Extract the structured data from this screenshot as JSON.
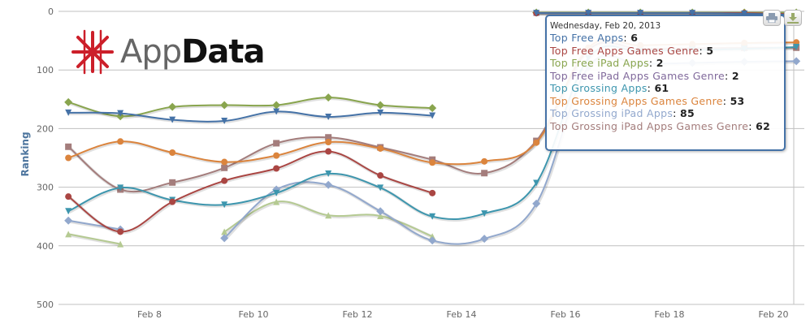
{
  "logo": {
    "part1": "App",
    "part2": "Data",
    "brand_color": "#cc1f2a"
  },
  "export": {
    "print_icon": "printer-icon",
    "download_icon": "download-icon"
  },
  "tooltip": {
    "date": "Wednesday, Feb 20, 2013",
    "rows": [
      {
        "label": "Top Free Apps",
        "value": "6",
        "color": "#4572A7"
      },
      {
        "label": "Top Free Apps Games Genre",
        "value": "5",
        "color": "#AA4643"
      },
      {
        "label": "Top Free iPad Apps",
        "value": "2",
        "color": "#89A54E"
      },
      {
        "label": "Top Free iPad Apps Games Genre",
        "value": "2",
        "color": "#80699B"
      },
      {
        "label": "Top Grossing Apps",
        "value": "61",
        "color": "#3D96AE"
      },
      {
        "label": "Top Grossing Apps Games Genre",
        "value": "53",
        "color": "#DB843D"
      },
      {
        "label": "Top Grossing iPad Apps",
        "value": "85",
        "color": "#92A8CD"
      },
      {
        "label": "Top Grossing iPad Apps Games Genre",
        "value": "62",
        "color": "#A47D7C"
      }
    ]
  },
  "chart_data": {
    "type": "line",
    "title": "",
    "xlabel": "",
    "ylabel": "Ranking",
    "ylim": [
      0,
      500
    ],
    "y_reversed": true,
    "y_ticks": [
      "0",
      "100",
      "200",
      "300",
      "400",
      "500"
    ],
    "x_ticks": [
      "Feb 8",
      "Feb 10",
      "Feb 12",
      "Feb 14",
      "Feb 16",
      "Feb 18",
      "Feb 20"
    ],
    "x_tick_days": [
      8,
      10,
      12,
      14,
      16,
      18,
      20
    ],
    "x_days": [
      6,
      7,
      8,
      9,
      10,
      11,
      12,
      13,
      14,
      15,
      16,
      17,
      18,
      19,
      20
    ],
    "grid": true,
    "series": [
      {
        "name": "Top Free Apps",
        "color": "#4572A7",
        "symbol": "triangle-down",
        "values": [
          173,
          174,
          185,
          187,
          171,
          180,
          173,
          178,
          null,
          3,
          3,
          3,
          3,
          4,
          6
        ]
      },
      {
        "name": "Top Free Apps Games Genre",
        "color": "#AA4643",
        "symbol": "circle",
        "values": [
          316,
          376,
          325,
          289,
          268,
          239,
          280,
          310,
          null,
          3,
          3,
          3,
          3,
          3,
          5
        ]
      },
      {
        "name": "Top Free iPad Apps",
        "color": "#89A54E",
        "symbol": "diamond",
        "values": [
          155,
          179,
          163,
          160,
          160,
          147,
          160,
          165,
          null,
          2,
          2,
          2,
          2,
          2,
          2
        ]
      },
      {
        "name": "Top Free iPad Apps Games Genre",
        "color": "#80699B",
        "symbol": "triangle",
        "values": [
          null,
          null,
          null,
          null,
          null,
          null,
          null,
          null,
          null,
          2,
          2,
          2,
          2,
          2,
          2
        ]
      },
      {
        "name": "Top Grossing Apps",
        "color": "#3D96AE",
        "symbol": "triangle-down",
        "values": [
          341,
          301,
          322,
          330,
          310,
          277,
          301,
          350,
          345,
          293,
          80,
          68,
          66,
          64,
          61
        ]
      },
      {
        "name": "Top Grossing Apps Games Genre",
        "color": "#DB843D",
        "symbol": "circle",
        "values": [
          250,
          222,
          241,
          257,
          246,
          223,
          234,
          258,
          256,
          224,
          62,
          58,
          56,
          54,
          53
        ]
      },
      {
        "name": "Top Grossing iPad Apps",
        "color": "#92A8CD",
        "symbol": "diamond",
        "values": [
          357,
          372,
          null,
          387,
          304,
          296,
          341,
          391,
          388,
          328,
          95,
          90,
          88,
          86,
          85
        ]
      },
      {
        "name": "Top Grossing iPad Apps Games Genre",
        "color": "#A47D7C",
        "symbol": "square",
        "values": [
          231,
          304,
          292,
          267,
          225,
          215,
          232,
          253,
          276,
          221,
          66,
          64,
          63,
          62,
          62
        ]
      },
      {
        "name": "",
        "color": "#B5CA92",
        "symbol": "triangle",
        "values": [
          380,
          397,
          null,
          376,
          325,
          348,
          349,
          384,
          null,
          null,
          null,
          null,
          null,
          null,
          null
        ]
      }
    ]
  }
}
